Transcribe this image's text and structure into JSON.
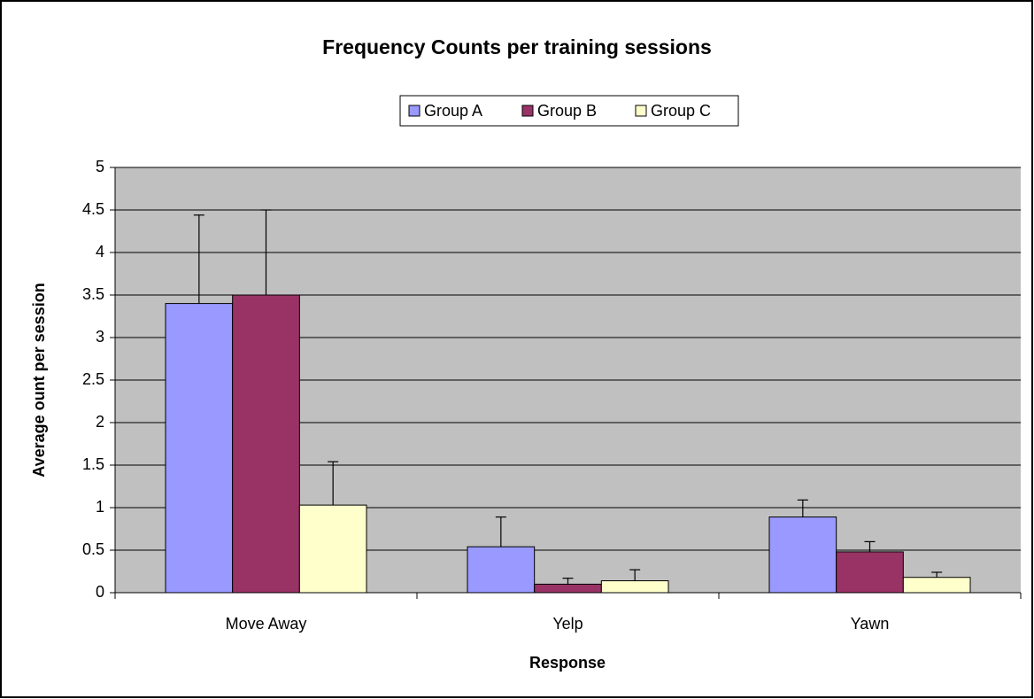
{
  "chart_data": {
    "type": "bar",
    "title": "Frequency Counts per training sessions",
    "x_label": "Response",
    "y_label": "Average ount per session",
    "categories": [
      "Move Away",
      "Yelp",
      "Yawn"
    ],
    "series": [
      {
        "name": "Group A",
        "color": "#9999ff",
        "values": [
          3.4,
          0.54,
          0.89
        ],
        "errors": [
          1.04,
          0.35,
          0.2
        ]
      },
      {
        "name": "Group B",
        "color": "#993366",
        "values": [
          3.5,
          0.1,
          0.48
        ],
        "errors": [
          1.0,
          0.07,
          0.12
        ]
      },
      {
        "name": "Group C",
        "color": "#ffffcc",
        "values": [
          1.03,
          0.14,
          0.18
        ],
        "errors": [
          0.51,
          0.13,
          0.06
        ]
      }
    ],
    "ylim": [
      0,
      5
    ],
    "yticks": [
      0,
      0.5,
      1,
      1.5,
      2,
      2.5,
      3,
      3.5,
      4,
      4.5,
      5
    ],
    "grid": true,
    "legend": "top"
  }
}
